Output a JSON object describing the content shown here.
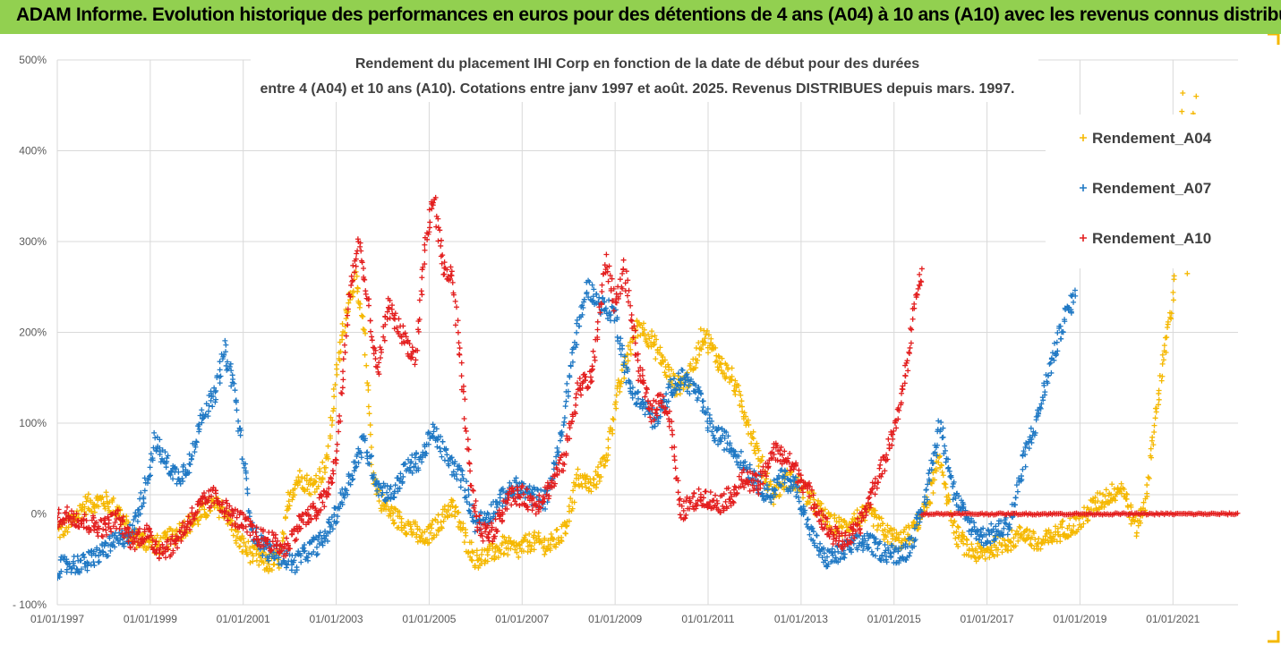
{
  "banner": {
    "title": "ADAM Informe. Evolution historique des performances en euros pour des détentions de 4 ans (A04) à 10 ans (A10) avec les revenus connus distribués",
    "color": "#92d050"
  },
  "chart_data": {
    "type": "scatter",
    "title_line1": "Rendement du placement IHI Corp en fonction de la date de début pour des durées",
    "title_line2": "entre 4 (A04) et 10 ans (A10). Cotations entre janv 1997 et août. 2025. Revenus DISTRIBUES depuis mars. 1997.",
    "x_ticks": [
      "01/01/1997",
      "01/01/1999",
      "01/01/2001",
      "01/01/2003",
      "01/01/2005",
      "01/01/2007",
      "01/01/2009",
      "01/01/2011",
      "01/01/2013",
      "01/01/2015",
      "01/01/2017",
      "01/01/2019",
      "01/01/2021"
    ],
    "y_ticks": [
      "500%",
      "400%",
      "300%",
      "200%",
      "100%",
      "0%",
      "- 100%"
    ],
    "ylim": [
      -100,
      500
    ],
    "xlim": [
      1997.0,
      2022.4
    ],
    "grid": true,
    "marker": "+",
    "legend_position": "right",
    "series": [
      {
        "name": "Rendement_A04",
        "color": "#f5b800",
        "points": [
          [
            1997.0,
            -20
          ],
          [
            1997.3,
            -10
          ],
          [
            1997.6,
            10
          ],
          [
            1998.0,
            15
          ],
          [
            1998.3,
            5
          ],
          [
            1998.6,
            -25
          ],
          [
            1998.9,
            -30
          ],
          [
            1999.2,
            -35
          ],
          [
            1999.6,
            -20
          ],
          [
            2000.0,
            -5
          ],
          [
            2000.3,
            10
          ],
          [
            2000.6,
            5
          ],
          [
            2000.9,
            -30
          ],
          [
            2001.2,
            -45
          ],
          [
            2001.5,
            -55
          ],
          [
            2001.8,
            -50
          ],
          [
            2002.0,
            20
          ],
          [
            2002.2,
            40
          ],
          [
            2002.5,
            30
          ],
          [
            2002.8,
            55
          ],
          [
            2003.0,
            150
          ],
          [
            2003.2,
            220
          ],
          [
            2003.4,
            260
          ],
          [
            2003.6,
            200
          ],
          [
            2003.8,
            40
          ],
          [
            2004.0,
            10
          ],
          [
            2004.3,
            -5
          ],
          [
            2004.6,
            -15
          ],
          [
            2004.9,
            -30
          ],
          [
            2005.2,
            -10
          ],
          [
            2005.5,
            10
          ],
          [
            2005.8,
            -30
          ],
          [
            2006.0,
            -50
          ],
          [
            2006.3,
            -45
          ],
          [
            2006.6,
            -35
          ],
          [
            2006.9,
            -40
          ],
          [
            2007.2,
            -30
          ],
          [
            2007.6,
            -35
          ],
          [
            2007.9,
            -20
          ],
          [
            2008.2,
            40
          ],
          [
            2008.5,
            30
          ],
          [
            2008.8,
            60
          ],
          [
            2009.0,
            120
          ],
          [
            2009.3,
            180
          ],
          [
            2009.5,
            210
          ],
          [
            2009.8,
            190
          ],
          [
            2010.0,
            170
          ],
          [
            2010.3,
            140
          ],
          [
            2010.6,
            150
          ],
          [
            2010.9,
            200
          ],
          [
            2011.2,
            170
          ],
          [
            2011.5,
            150
          ],
          [
            2011.8,
            110
          ],
          [
            2012.1,
            60
          ],
          [
            2012.4,
            20
          ],
          [
            2012.7,
            40
          ],
          [
            2013.0,
            30
          ],
          [
            2013.3,
            10
          ],
          [
            2013.6,
            -10
          ],
          [
            2013.9,
            -15
          ],
          [
            2014.2,
            -5
          ],
          [
            2014.5,
            0
          ],
          [
            2014.8,
            -20
          ],
          [
            2015.1,
            -30
          ],
          [
            2015.4,
            -20
          ],
          [
            2015.7,
            10
          ],
          [
            2016.0,
            60
          ],
          [
            2016.3,
            -20
          ],
          [
            2016.6,
            -40
          ],
          [
            2016.9,
            -45
          ],
          [
            2017.2,
            -35
          ],
          [
            2017.5,
            -30
          ],
          [
            2017.8,
            -20
          ],
          [
            2018.1,
            -35
          ],
          [
            2018.4,
            -25
          ],
          [
            2018.7,
            -15
          ],
          [
            2019.0,
            -10
          ],
          [
            2019.3,
            10
          ],
          [
            2019.6,
            20
          ],
          [
            2019.9,
            30
          ],
          [
            2020.2,
            -15
          ],
          [
            2020.4,
            10
          ],
          [
            2020.6,
            100
          ],
          [
            2020.8,
            170
          ],
          [
            2021.0,
            240
          ],
          [
            2021.3,
            260
          ],
          [
            2021.5,
            280
          ],
          [
            2021.2,
            458
          ],
          [
            2021.5,
            460
          ],
          [
            2021.45,
            445
          ]
        ]
      },
      {
        "name": "Rendement_A07",
        "color": "#1f78c4",
        "points": [
          [
            1997.0,
            -60
          ],
          [
            1997.3,
            -55
          ],
          [
            1997.6,
            -55
          ],
          [
            1998.0,
            -40
          ],
          [
            1998.3,
            -30
          ],
          [
            1998.6,
            -20
          ],
          [
            1998.9,
            30
          ],
          [
            1999.1,
            80
          ],
          [
            1999.3,
            60
          ],
          [
            1999.6,
            40
          ],
          [
            1999.9,
            60
          ],
          [
            2000.1,
            110
          ],
          [
            2000.4,
            130
          ],
          [
            2000.6,
            180
          ],
          [
            2000.8,
            140
          ],
          [
            2001.0,
            60
          ],
          [
            2001.2,
            -20
          ],
          [
            2001.5,
            -40
          ],
          [
            2001.8,
            -45
          ],
          [
            2002.1,
            -55
          ],
          [
            2002.4,
            -40
          ],
          [
            2002.7,
            -30
          ],
          [
            2003.0,
            0
          ],
          [
            2003.3,
            40
          ],
          [
            2003.6,
            80
          ],
          [
            2003.9,
            30
          ],
          [
            2004.2,
            20
          ],
          [
            2004.5,
            50
          ],
          [
            2004.8,
            60
          ],
          [
            2005.1,
            90
          ],
          [
            2005.4,
            60
          ],
          [
            2005.7,
            40
          ],
          [
            2006.0,
            -10
          ],
          [
            2006.3,
            0
          ],
          [
            2006.6,
            20
          ],
          [
            2006.9,
            30
          ],
          [
            2007.2,
            20
          ],
          [
            2007.5,
            15
          ],
          [
            2007.8,
            70
          ],
          [
            2008.1,
            180
          ],
          [
            2008.4,
            250
          ],
          [
            2008.7,
            230
          ],
          [
            2009.0,
            220
          ],
          [
            2009.3,
            140
          ],
          [
            2009.6,
            120
          ],
          [
            2009.9,
            100
          ],
          [
            2010.2,
            140
          ],
          [
            2010.5,
            150
          ],
          [
            2010.8,
            130
          ],
          [
            2011.1,
            90
          ],
          [
            2011.4,
            80
          ],
          [
            2011.7,
            60
          ],
          [
            2012.0,
            40
          ],
          [
            2012.3,
            20
          ],
          [
            2012.6,
            40
          ],
          [
            2012.9,
            30
          ],
          [
            2013.2,
            -20
          ],
          [
            2013.5,
            -50
          ],
          [
            2013.8,
            -45
          ],
          [
            2014.1,
            -35
          ],
          [
            2014.4,
            -30
          ],
          [
            2014.7,
            -40
          ],
          [
            2015.0,
            -45
          ],
          [
            2015.3,
            -40
          ],
          [
            2015.6,
            0
          ],
          [
            2016.0,
            100
          ],
          [
            2016.3,
            20
          ],
          [
            2016.6,
            -10
          ],
          [
            2016.9,
            -25
          ],
          [
            2017.2,
            -20
          ],
          [
            2017.5,
            -10
          ],
          [
            2017.8,
            60
          ],
          [
            2018.1,
            110
          ],
          [
            2018.4,
            170
          ],
          [
            2018.7,
            220
          ],
          [
            2018.9,
            240
          ]
        ]
      },
      {
        "name": "Rendement_A10",
        "color": "#e31e1e",
        "points": [
          [
            1997.0,
            -5
          ],
          [
            1997.3,
            0
          ],
          [
            1997.6,
            -10
          ],
          [
            1998.0,
            -15
          ],
          [
            1998.3,
            -5
          ],
          [
            1998.6,
            -30
          ],
          [
            1998.9,
            -20
          ],
          [
            1999.2,
            -40
          ],
          [
            1999.5,
            -35
          ],
          [
            1999.8,
            -10
          ],
          [
            2000.1,
            10
          ],
          [
            2000.4,
            20
          ],
          [
            2000.7,
            0
          ],
          [
            2001.0,
            -10
          ],
          [
            2001.3,
            -25
          ],
          [
            2001.6,
            -30
          ],
          [
            2001.9,
            -40
          ],
          [
            2002.2,
            -10
          ],
          [
            2002.5,
            0
          ],
          [
            2002.8,
            20
          ],
          [
            2003.0,
            60
          ],
          [
            2003.3,
            250
          ],
          [
            2003.5,
            300
          ],
          [
            2003.7,
            220
          ],
          [
            2003.9,
            150
          ],
          [
            2004.1,
            230
          ],
          [
            2004.4,
            200
          ],
          [
            2004.7,
            170
          ],
          [
            2004.9,
            290
          ],
          [
            2005.1,
            350
          ],
          [
            2005.3,
            270
          ],
          [
            2005.5,
            260
          ],
          [
            2005.7,
            150
          ],
          [
            2005.9,
            30
          ],
          [
            2006.1,
            -20
          ],
          [
            2006.4,
            -20
          ],
          [
            2006.7,
            20
          ],
          [
            2007.0,
            20
          ],
          [
            2007.3,
            10
          ],
          [
            2007.6,
            30
          ],
          [
            2007.9,
            60
          ],
          [
            2008.2,
            140
          ],
          [
            2008.5,
            150
          ],
          [
            2008.8,
            280
          ],
          [
            2009.0,
            230
          ],
          [
            2009.2,
            270
          ],
          [
            2009.5,
            160
          ],
          [
            2009.8,
            110
          ],
          [
            2010.0,
            130
          ],
          [
            2010.2,
            100
          ],
          [
            2010.4,
            0
          ],
          [
            2010.6,
            10
          ],
          [
            2010.9,
            20
          ],
          [
            2011.2,
            10
          ],
          [
            2011.5,
            20
          ],
          [
            2011.8,
            40
          ],
          [
            2012.1,
            30
          ],
          [
            2012.4,
            70
          ],
          [
            2012.7,
            60
          ],
          [
            2013.0,
            40
          ],
          [
            2013.3,
            10
          ],
          [
            2013.6,
            -20
          ],
          [
            2013.9,
            -30
          ],
          [
            2014.2,
            -20
          ],
          [
            2014.5,
            20
          ],
          [
            2014.8,
            60
          ],
          [
            2015.1,
            110
          ],
          [
            2015.3,
            170
          ],
          [
            2015.5,
            250
          ],
          [
            2015.6,
            270
          ]
        ],
        "flat_segment": {
          "x_start": 2015.6,
          "x_end": 2022.4,
          "y": 0
        }
      }
    ]
  }
}
